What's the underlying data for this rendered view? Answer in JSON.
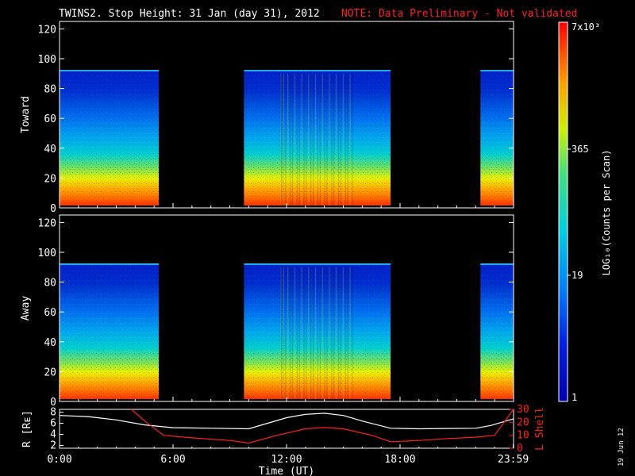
{
  "title": {
    "main": "TWINS2. Stop Height: 31 Jan (day  31), 2012",
    "note": "NOTE: Data Preliminary - Not validated"
  },
  "colorbar": {
    "label": "LOG₁₀(Counts per Scan)",
    "ticks": [
      "7x10³",
      "365",
      "19",
      "1"
    ]
  },
  "date_stamp": "19 Jun 12",
  "chart_data": [
    {
      "type": "heatmap",
      "panel": "toward",
      "ylabel": "Toward",
      "ylim": [
        0,
        125
      ],
      "yticks": [
        0,
        20,
        40,
        60,
        80,
        100,
        120
      ],
      "xlim": [
        0,
        24
      ],
      "data_top": 92,
      "data_intervals": [
        [
          0,
          5.25
        ],
        [
          9.75,
          17.5
        ],
        [
          22.25,
          24
        ]
      ]
    },
    {
      "type": "heatmap",
      "panel": "away",
      "ylabel": "Away",
      "ylim": [
        0,
        125
      ],
      "yticks": [
        0,
        20,
        40,
        60,
        80,
        100,
        120
      ],
      "xlim": [
        0,
        24
      ],
      "data_top": 92,
      "data_intervals": [
        [
          0,
          5.25
        ],
        [
          9.75,
          17.5
        ],
        [
          22.25,
          24
        ]
      ]
    },
    {
      "type": "line",
      "panel": "orbit",
      "xlabel": "Time (UT)",
      "xticks": [
        "0:00",
        "6:00",
        "12:00",
        "18:00",
        "23:59"
      ],
      "ylabel_left": "R [Rᴇ]",
      "ylabel_right": "L Shell",
      "left_yticks": [
        2,
        4,
        6,
        8
      ],
      "right_yticks": [
        0,
        10,
        20,
        30
      ],
      "left_ylim": [
        1.5,
        8.5
      ],
      "right_ylim": [
        0,
        30
      ],
      "xlim": [
        0,
        24
      ],
      "series": [
        {
          "name": "R",
          "axis": "left",
          "color": "#ffffff",
          "x": [
            0,
            1.5,
            3,
            4.5,
            6,
            8,
            10,
            11,
            12,
            13,
            14,
            15,
            16,
            17.5,
            19,
            20.5,
            22,
            22.8,
            24
          ],
          "y": [
            7.4,
            7.2,
            6.6,
            5.7,
            5.2,
            5.1,
            5.0,
            6.0,
            7.0,
            7.6,
            7.8,
            7.4,
            6.4,
            5.1,
            5.0,
            5.05,
            5.1,
            5.6,
            6.8
          ]
        },
        {
          "name": "L Shell",
          "axis": "right",
          "color": "#ff2020",
          "x": [
            3.8,
            4.5,
            5.5,
            7,
            9,
            10,
            11.5,
            13,
            14,
            15,
            16.5,
            17.5,
            19,
            20.5,
            22,
            23,
            23.5,
            24
          ],
          "y": [
            30,
            21,
            10,
            8,
            6,
            4,
            10,
            15,
            16,
            15,
            10,
            5,
            6,
            7.5,
            8.5,
            10,
            20,
            30
          ]
        }
      ]
    }
  ]
}
